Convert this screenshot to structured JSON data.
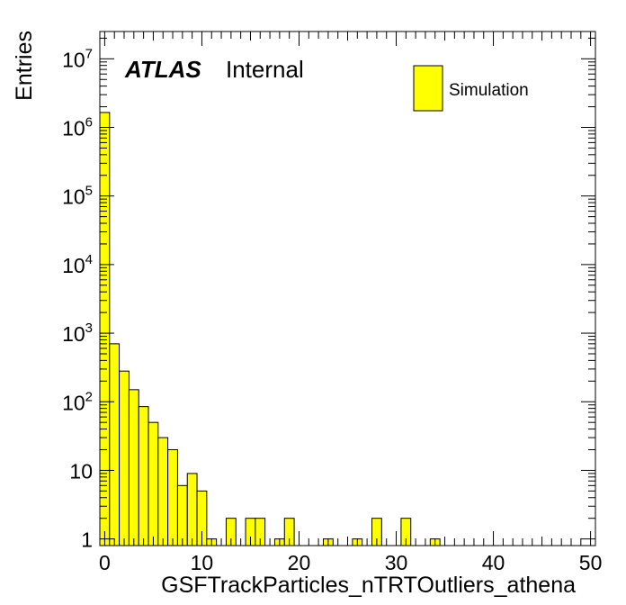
{
  "chart_data": {
    "type": "bar",
    "style": "step-histogram",
    "xlabel": "GSFTrackParticles_nTRTOutliers_athena",
    "ylabel": "Entries",
    "xlim": [
      -0.5,
      50.5
    ],
    "ylim": [
      0.8,
      25000000
    ],
    "yscale": "log",
    "bin_width": 1,
    "x": [
      0,
      1,
      2,
      3,
      4,
      5,
      6,
      7,
      8,
      9,
      10,
      11,
      12,
      13,
      14,
      15,
      16,
      17,
      18,
      19,
      20,
      21,
      22,
      23,
      24,
      25,
      26,
      27,
      28,
      29,
      30,
      31,
      32,
      33,
      34,
      35,
      36,
      37,
      38,
      39,
      40,
      41,
      42,
      43,
      44,
      45,
      46,
      47,
      48,
      49,
      50
    ],
    "values": [
      1650000,
      700,
      280,
      150,
      85,
      50,
      30,
      20,
      6,
      9,
      5,
      1,
      0,
      2,
      0,
      2,
      2,
      0,
      1,
      2,
      0,
      0,
      0,
      1,
      0,
      0,
      1,
      0,
      2,
      0,
      0,
      2,
      0,
      0,
      1,
      0,
      0,
      0,
      0,
      0,
      0,
      0,
      0,
      0,
      0,
      0,
      0,
      0,
      0,
      0,
      0
    ],
    "x_ticks": [
      0,
      10,
      20,
      30,
      40,
      50
    ],
    "x_tick_labels": [
      "0",
      "10",
      "20",
      "30",
      "40",
      "50"
    ],
    "y_ticks": [
      {
        "value": 1,
        "base": "1",
        "exp": ""
      },
      {
        "value": 10,
        "base": "10",
        "exp": ""
      },
      {
        "value": 100,
        "base": "10",
        "exp": "2"
      },
      {
        "value": 1000,
        "base": "10",
        "exp": "3"
      },
      {
        "value": 10000,
        "base": "10",
        "exp": "4"
      },
      {
        "value": 100000,
        "base": "10",
        "exp": "5"
      },
      {
        "value": 1000000,
        "base": "10",
        "exp": "6"
      },
      {
        "value": 10000000,
        "base": "10",
        "exp": "7"
      }
    ],
    "fill_color": "#ffff00",
    "line_color": "#000000",
    "legend": {
      "label": "Simulation",
      "position": "top-right"
    },
    "annotation": {
      "bold": "ATLAS",
      "text": "Internal"
    }
  }
}
